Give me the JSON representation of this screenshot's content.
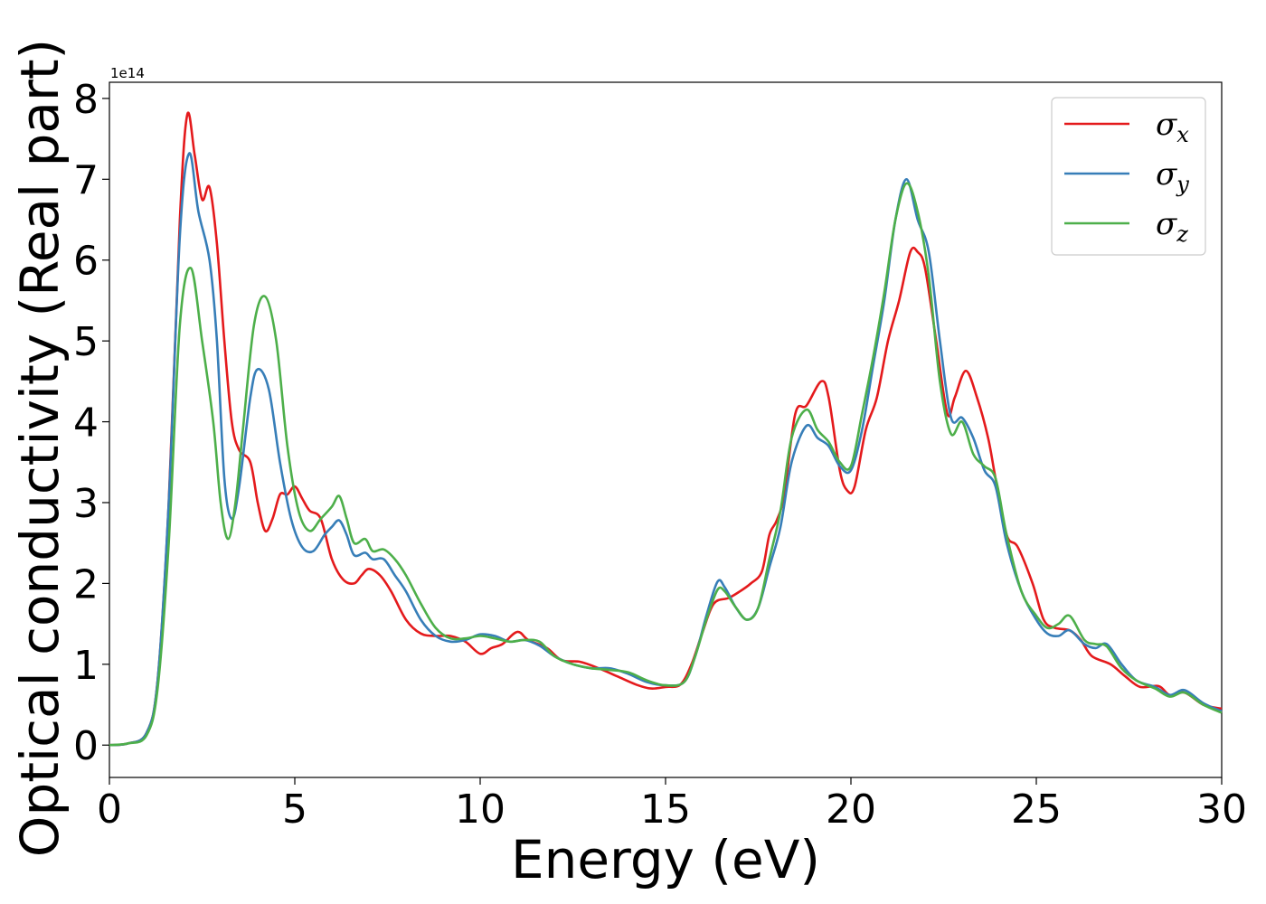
{
  "chart_data": {
    "type": "line",
    "title": "",
    "xlabel": "Energy (eV)",
    "ylabel": "Optical conductivity (Real part)",
    "y_offset_label": "1e14",
    "xlim": [
      0,
      30
    ],
    "ylim": [
      -0.4,
      8.2
    ],
    "x_ticks": [
      0,
      5,
      10,
      15,
      20,
      25,
      30
    ],
    "y_ticks": [
      0,
      1,
      2,
      3,
      4,
      5,
      6,
      7,
      8
    ],
    "grid": false,
    "legend": "top-right",
    "series": [
      {
        "name": "σx",
        "symbol": "σ",
        "subscript": "x",
        "color": "#e41a1c",
        "points": [
          [
            0,
            0
          ],
          [
            0.5,
            0.02
          ],
          [
            1.0,
            0.15
          ],
          [
            1.3,
            0.8
          ],
          [
            1.6,
            3.0
          ],
          [
            1.9,
            6.5
          ],
          [
            2.1,
            7.8
          ],
          [
            2.3,
            7.3
          ],
          [
            2.5,
            6.75
          ],
          [
            2.7,
            6.9
          ],
          [
            2.9,
            6.2
          ],
          [
            3.1,
            5.0
          ],
          [
            3.3,
            4.0
          ],
          [
            3.5,
            3.65
          ],
          [
            3.8,
            3.5
          ],
          [
            4.0,
            3.0
          ],
          [
            4.2,
            2.65
          ],
          [
            4.4,
            2.8
          ],
          [
            4.6,
            3.1
          ],
          [
            4.8,
            3.1
          ],
          [
            5.0,
            3.2
          ],
          [
            5.2,
            3.05
          ],
          [
            5.4,
            2.9
          ],
          [
            5.7,
            2.8
          ],
          [
            6.0,
            2.3
          ],
          [
            6.3,
            2.05
          ],
          [
            6.6,
            2.0
          ],
          [
            6.8,
            2.1
          ],
          [
            7.0,
            2.18
          ],
          [
            7.3,
            2.1
          ],
          [
            7.6,
            1.9
          ],
          [
            8.0,
            1.55
          ],
          [
            8.4,
            1.38
          ],
          [
            8.8,
            1.35
          ],
          [
            9.2,
            1.35
          ],
          [
            9.6,
            1.28
          ],
          [
            10.0,
            1.13
          ],
          [
            10.3,
            1.2
          ],
          [
            10.6,
            1.25
          ],
          [
            11.0,
            1.4
          ],
          [
            11.3,
            1.3
          ],
          [
            11.8,
            1.2
          ],
          [
            12.2,
            1.05
          ],
          [
            12.7,
            1.03
          ],
          [
            13.2,
            0.95
          ],
          [
            13.7,
            0.85
          ],
          [
            14.2,
            0.75
          ],
          [
            14.6,
            0.7
          ],
          [
            15.0,
            0.72
          ],
          [
            15.4,
            0.75
          ],
          [
            15.7,
            1.0
          ],
          [
            16.0,
            1.4
          ],
          [
            16.3,
            1.75
          ],
          [
            16.7,
            1.82
          ],
          [
            17.0,
            1.9
          ],
          [
            17.3,
            2.0
          ],
          [
            17.6,
            2.15
          ],
          [
            17.8,
            2.6
          ],
          [
            18.0,
            2.78
          ],
          [
            18.2,
            3.1
          ],
          [
            18.5,
            4.1
          ],
          [
            18.8,
            4.2
          ],
          [
            19.2,
            4.5
          ],
          [
            19.4,
            4.3
          ],
          [
            19.7,
            3.4
          ],
          [
            19.9,
            3.15
          ],
          [
            20.1,
            3.2
          ],
          [
            20.4,
            3.9
          ],
          [
            20.7,
            4.3
          ],
          [
            21.0,
            5.0
          ],
          [
            21.3,
            5.5
          ],
          [
            21.6,
            6.1
          ],
          [
            21.8,
            6.1
          ],
          [
            22.0,
            5.9
          ],
          [
            22.3,
            5.0
          ],
          [
            22.6,
            4.1
          ],
          [
            22.8,
            4.3
          ],
          [
            23.1,
            4.63
          ],
          [
            23.4,
            4.3
          ],
          [
            23.7,
            3.8
          ],
          [
            23.9,
            3.3
          ],
          [
            24.2,
            2.6
          ],
          [
            24.5,
            2.45
          ],
          [
            24.9,
            2.0
          ],
          [
            25.2,
            1.55
          ],
          [
            25.5,
            1.45
          ],
          [
            25.9,
            1.42
          ],
          [
            26.2,
            1.3
          ],
          [
            26.5,
            1.1
          ],
          [
            27.0,
            1.0
          ],
          [
            27.4,
            0.85
          ],
          [
            27.8,
            0.72
          ],
          [
            28.3,
            0.73
          ],
          [
            28.6,
            0.62
          ],
          [
            29.0,
            0.65
          ],
          [
            29.5,
            0.5
          ],
          [
            30.0,
            0.45
          ]
        ]
      },
      {
        "name": "σy",
        "symbol": "σ",
        "subscript": "y",
        "color": "#377eb8",
        "points": [
          [
            0,
            0
          ],
          [
            0.5,
            0.02
          ],
          [
            1.0,
            0.15
          ],
          [
            1.3,
            0.8
          ],
          [
            1.6,
            3.0
          ],
          [
            1.9,
            6.3
          ],
          [
            2.15,
            7.32
          ],
          [
            2.4,
            6.6
          ],
          [
            2.7,
            6.0
          ],
          [
            2.9,
            5.0
          ],
          [
            3.1,
            3.3
          ],
          [
            3.3,
            2.8
          ],
          [
            3.5,
            3.2
          ],
          [
            3.8,
            4.3
          ],
          [
            4.0,
            4.65
          ],
          [
            4.3,
            4.4
          ],
          [
            4.6,
            3.5
          ],
          [
            4.9,
            2.8
          ],
          [
            5.2,
            2.45
          ],
          [
            5.5,
            2.4
          ],
          [
            5.8,
            2.6
          ],
          [
            6.0,
            2.7
          ],
          [
            6.2,
            2.78
          ],
          [
            6.4,
            2.6
          ],
          [
            6.6,
            2.35
          ],
          [
            6.9,
            2.38
          ],
          [
            7.1,
            2.3
          ],
          [
            7.4,
            2.3
          ],
          [
            7.7,
            2.1
          ],
          [
            8.0,
            1.9
          ],
          [
            8.4,
            1.55
          ],
          [
            8.8,
            1.35
          ],
          [
            9.2,
            1.28
          ],
          [
            9.6,
            1.3
          ],
          [
            10.0,
            1.37
          ],
          [
            10.4,
            1.35
          ],
          [
            10.8,
            1.28
          ],
          [
            11.2,
            1.3
          ],
          [
            11.6,
            1.23
          ],
          [
            12.0,
            1.1
          ],
          [
            12.5,
            1.0
          ],
          [
            13.0,
            0.95
          ],
          [
            13.5,
            0.95
          ],
          [
            14.0,
            0.88
          ],
          [
            14.5,
            0.78
          ],
          [
            15.0,
            0.74
          ],
          [
            15.5,
            0.78
          ],
          [
            15.8,
            1.1
          ],
          [
            16.1,
            1.6
          ],
          [
            16.4,
            2.02
          ],
          [
            16.6,
            1.95
          ],
          [
            16.9,
            1.7
          ],
          [
            17.2,
            1.55
          ],
          [
            17.5,
            1.7
          ],
          [
            17.8,
            2.2
          ],
          [
            18.1,
            2.7
          ],
          [
            18.4,
            3.5
          ],
          [
            18.8,
            3.95
          ],
          [
            19.1,
            3.8
          ],
          [
            19.4,
            3.7
          ],
          [
            19.7,
            3.45
          ],
          [
            20.0,
            3.4
          ],
          [
            20.3,
            3.9
          ],
          [
            20.6,
            4.7
          ],
          [
            20.9,
            5.5
          ],
          [
            21.2,
            6.5
          ],
          [
            21.5,
            7.0
          ],
          [
            21.8,
            6.5
          ],
          [
            22.1,
            6.1
          ],
          [
            22.4,
            5.0
          ],
          [
            22.7,
            4.05
          ],
          [
            23.0,
            4.05
          ],
          [
            23.3,
            3.8
          ],
          [
            23.6,
            3.4
          ],
          [
            23.9,
            3.2
          ],
          [
            24.2,
            2.5
          ],
          [
            24.6,
            1.9
          ],
          [
            25.0,
            1.55
          ],
          [
            25.3,
            1.38
          ],
          [
            25.6,
            1.35
          ],
          [
            25.9,
            1.42
          ],
          [
            26.3,
            1.25
          ],
          [
            26.6,
            1.2
          ],
          [
            26.9,
            1.25
          ],
          [
            27.3,
            1.0
          ],
          [
            27.7,
            0.8
          ],
          [
            28.2,
            0.72
          ],
          [
            28.6,
            0.62
          ],
          [
            29.0,
            0.68
          ],
          [
            29.5,
            0.52
          ],
          [
            30.0,
            0.42
          ]
        ]
      },
      {
        "name": "σz",
        "symbol": "σ",
        "subscript": "z",
        "color": "#4daf4a",
        "points": [
          [
            0,
            0
          ],
          [
            0.5,
            0.02
          ],
          [
            1.0,
            0.12
          ],
          [
            1.3,
            0.7
          ],
          [
            1.6,
            2.5
          ],
          [
            1.9,
            5.2
          ],
          [
            2.2,
            5.9
          ],
          [
            2.5,
            5.0
          ],
          [
            2.8,
            4.0
          ],
          [
            3.0,
            3.0
          ],
          [
            3.2,
            2.55
          ],
          [
            3.4,
            3.0
          ],
          [
            3.6,
            3.9
          ],
          [
            3.9,
            5.2
          ],
          [
            4.2,
            5.55
          ],
          [
            4.5,
            5.0
          ],
          [
            4.8,
            3.7
          ],
          [
            5.1,
            2.9
          ],
          [
            5.4,
            2.65
          ],
          [
            5.7,
            2.8
          ],
          [
            6.0,
            2.95
          ],
          [
            6.2,
            3.08
          ],
          [
            6.4,
            2.8
          ],
          [
            6.6,
            2.5
          ],
          [
            6.9,
            2.55
          ],
          [
            7.1,
            2.4
          ],
          [
            7.4,
            2.42
          ],
          [
            7.7,
            2.3
          ],
          [
            8.0,
            2.1
          ],
          [
            8.4,
            1.75
          ],
          [
            8.8,
            1.45
          ],
          [
            9.2,
            1.32
          ],
          [
            9.6,
            1.32
          ],
          [
            10.0,
            1.35
          ],
          [
            10.4,
            1.32
          ],
          [
            10.8,
            1.28
          ],
          [
            11.2,
            1.3
          ],
          [
            11.6,
            1.28
          ],
          [
            12.0,
            1.1
          ],
          [
            12.5,
            1.0
          ],
          [
            13.0,
            0.95
          ],
          [
            13.5,
            0.93
          ],
          [
            14.0,
            0.9
          ],
          [
            14.5,
            0.8
          ],
          [
            15.0,
            0.74
          ],
          [
            15.5,
            0.78
          ],
          [
            15.8,
            1.1
          ],
          [
            16.1,
            1.55
          ],
          [
            16.4,
            1.92
          ],
          [
            16.6,
            1.9
          ],
          [
            16.9,
            1.7
          ],
          [
            17.2,
            1.55
          ],
          [
            17.5,
            1.7
          ],
          [
            17.8,
            2.3
          ],
          [
            18.1,
            2.9
          ],
          [
            18.4,
            3.8
          ],
          [
            18.8,
            4.15
          ],
          [
            19.1,
            3.9
          ],
          [
            19.4,
            3.75
          ],
          [
            19.7,
            3.5
          ],
          [
            20.0,
            3.45
          ],
          [
            20.3,
            4.1
          ],
          [
            20.6,
            4.8
          ],
          [
            20.9,
            5.6
          ],
          [
            21.2,
            6.5
          ],
          [
            21.5,
            6.95
          ],
          [
            21.8,
            6.6
          ],
          [
            22.1,
            5.8
          ],
          [
            22.4,
            4.5
          ],
          [
            22.7,
            3.85
          ],
          [
            23.0,
            4.0
          ],
          [
            23.3,
            3.6
          ],
          [
            23.6,
            3.45
          ],
          [
            23.9,
            3.3
          ],
          [
            24.2,
            2.6
          ],
          [
            24.6,
            1.9
          ],
          [
            25.0,
            1.6
          ],
          [
            25.3,
            1.45
          ],
          [
            25.6,
            1.5
          ],
          [
            25.9,
            1.6
          ],
          [
            26.3,
            1.3
          ],
          [
            26.6,
            1.25
          ],
          [
            26.9,
            1.22
          ],
          [
            27.3,
            0.95
          ],
          [
            27.7,
            0.8
          ],
          [
            28.2,
            0.7
          ],
          [
            28.6,
            0.6
          ],
          [
            29.0,
            0.65
          ],
          [
            29.5,
            0.5
          ],
          [
            30.0,
            0.4
          ]
        ]
      }
    ]
  }
}
